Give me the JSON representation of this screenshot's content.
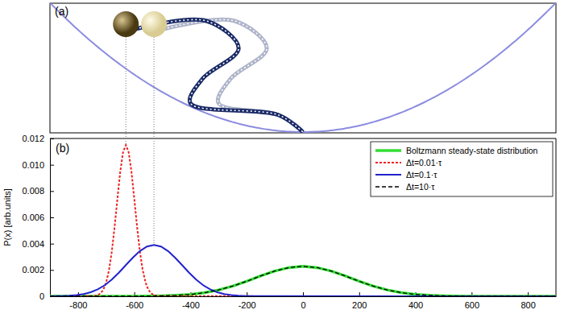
{
  "chart_data": [
    {
      "type": "schematic",
      "panel_label": "(a)"
    },
    {
      "type": "line",
      "panel_label": "(b)",
      "y_label": "P(x) [arb.units]",
      "xlim": [
        -900,
        900
      ],
      "ylim": [
        0,
        0.012
      ],
      "xticks": [
        -800,
        -600,
        -400,
        -200,
        0,
        200,
        400,
        600,
        800
      ],
      "yticks": [
        0,
        0.002,
        0.004,
        0.006,
        0.008,
        {
          "value": 0.01,
          "label": "0.010"
        },
        0.012
      ],
      "legend": "upper right",
      "series": [
        {
          "name": "Boltzmann steady-state distribution",
          "color": "#33dd33",
          "line_style": "solid",
          "x": [
            -900,
            -600,
            -550,
            -500,
            -450,
            -400,
            -350,
            -300,
            -250,
            -200,
            -150,
            -100,
            -50,
            0,
            50,
            100,
            150,
            200,
            250,
            300,
            350,
            400,
            450,
            500,
            550,
            600,
            900
          ],
          "values": [
            0,
            0,
            1e-05,
            3e-05,
            7e-05,
            0.00014,
            0.00027,
            0.00048,
            0.00077,
            0.00114,
            0.00155,
            0.00192,
            0.00218,
            0.00228,
            0.00218,
            0.00192,
            0.00155,
            0.00114,
            0.00077,
            0.00048,
            0.00027,
            0.00014,
            7e-05,
            3e-05,
            1e-05,
            0,
            0
          ]
        },
        {
          "name": "Δt=0.01·τ",
          "color": "#ee2222",
          "line_style": "dotted",
          "x": [
            -900,
            -750,
            -740,
            -730,
            -720,
            -710,
            -700,
            -690,
            -680,
            -670,
            -660,
            -650,
            -640,
            -630,
            -620,
            -610,
            -600,
            -590,
            -580,
            -570,
            -560,
            -550,
            -540,
            -530,
            -520,
            -510,
            900
          ],
          "values": [
            0,
            1e-05,
            3e-05,
            9e-05,
            0.00022,
            0.0005,
            0.00105,
            0.00198,
            0.00339,
            0.00527,
            0.00741,
            0.00946,
            0.01095,
            0.0115,
            0.01095,
            0.00946,
            0.00741,
            0.00527,
            0.00339,
            0.00198,
            0.00105,
            0.0005,
            0.00022,
            9e-05,
            3e-05,
            1e-05,
            0
          ]
        },
        {
          "name": "Δt=0.1·τ",
          "color": "#2222cc",
          "line_style": "solid",
          "x": [
            -900,
            -880,
            -855,
            -830,
            -805,
            -780,
            -755,
            -730,
            -705,
            -680,
            -655,
            -630,
            -605,
            -580,
            -555,
            -530,
            -505,
            -480,
            -455,
            -430,
            -405,
            -380,
            -355,
            -330,
            -305,
            -280,
            -255,
            -230,
            -205,
            -180,
            900
          ],
          "values": [
            0,
            1e-05,
            2e-05,
            4e-05,
            9e-05,
            0.00017,
            0.00031,
            0.00053,
            0.00084,
            0.00127,
            0.00179,
            0.00237,
            0.00294,
            0.00344,
            0.00378,
            0.0039,
            0.00378,
            0.00344,
            0.00294,
            0.00237,
            0.00179,
            0.00127,
            0.00084,
            0.00053,
            0.00031,
            0.00017,
            9e-05,
            4e-05,
            2e-05,
            1e-05,
            0
          ]
        },
        {
          "name": "Δt=10·τ",
          "color": "#000000",
          "line_style": "dashed",
          "x": [
            -900,
            -600,
            -550,
            -500,
            -450,
            -400,
            -350,
            -300,
            -250,
            -200,
            -150,
            -100,
            -50,
            0,
            50,
            100,
            150,
            200,
            250,
            300,
            350,
            400,
            450,
            500,
            550,
            600,
            900
          ],
          "values": [
            0,
            0,
            1e-05,
            3e-05,
            7e-05,
            0.00014,
            0.00027,
            0.00048,
            0.00077,
            0.00114,
            0.00155,
            0.00192,
            0.00218,
            0.00228,
            0.00218,
            0.00192,
            0.00155,
            0.00114,
            0.00077,
            0.00048,
            0.00027,
            0.00014,
            7e-05,
            3e-05,
            1e-05,
            0,
            0
          ]
        }
      ]
    }
  ]
}
